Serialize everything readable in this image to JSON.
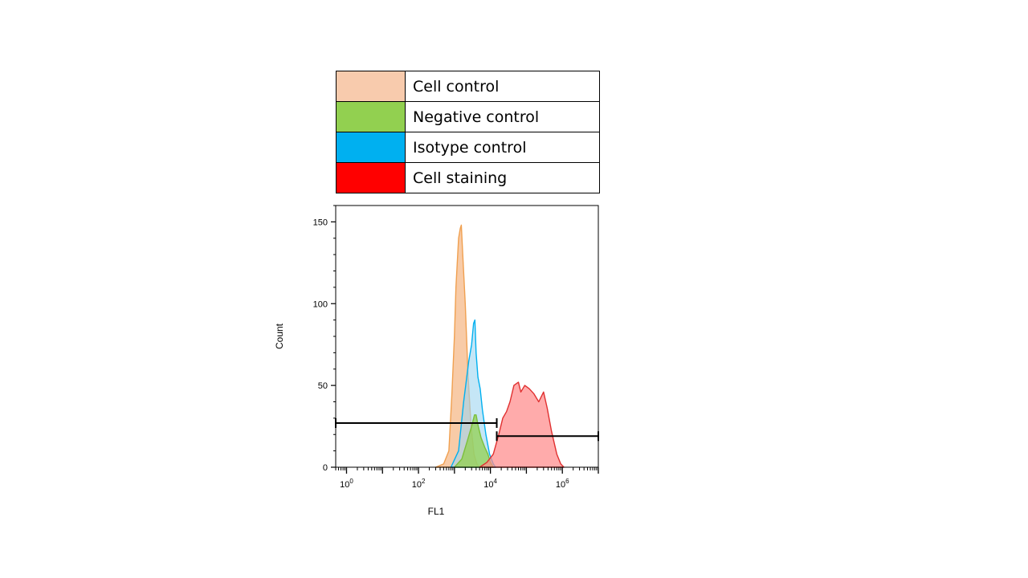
{
  "chart_data": {
    "type": "area",
    "title": "",
    "xlabel": "FL1",
    "ylabel": "Count",
    "x_scale": "log",
    "xlim": [
      0.5,
      10000000
    ],
    "ylim": [
      0,
      160
    ],
    "x_ticks": [
      {
        "value": 1,
        "base": "10",
        "exp": "0"
      },
      {
        "value": 100,
        "base": "10",
        "exp": "2"
      },
      {
        "value": 10000,
        "base": "10",
        "exp": "4"
      },
      {
        "value": 1000000,
        "base": "10",
        "exp": "6"
      }
    ],
    "y_ticks": [
      {
        "value": 0,
        "label": "0"
      },
      {
        "value": 50,
        "label": "50"
      },
      {
        "value": 100,
        "label": "100"
      },
      {
        "value": 150,
        "label": "150"
      }
    ],
    "legend": {
      "placement": "top",
      "entries": [
        {
          "label": "Cell control",
          "color": "#F8CBAD"
        },
        {
          "label": "Negative control",
          "color": "#92D050"
        },
        {
          "label": "Isotype control",
          "color": "#00B0F0"
        },
        {
          "label": "Cell staining",
          "color": "#FF0000"
        }
      ]
    },
    "series": [
      {
        "key": "cell_control",
        "fill": "#F5B98A",
        "stroke": "#F0A050",
        "opacity": 0.75,
        "points": [
          [
            300,
            0
          ],
          [
            500,
            2
          ],
          [
            700,
            10
          ],
          [
            850,
            45
          ],
          [
            1000,
            80
          ],
          [
            1100,
            110
          ],
          [
            1300,
            140
          ],
          [
            1450,
            146
          ],
          [
            1550,
            148
          ],
          [
            1700,
            130
          ],
          [
            2000,
            100
          ],
          [
            2400,
            55
          ],
          [
            2900,
            25
          ],
          [
            3500,
            8
          ],
          [
            4200,
            2
          ],
          [
            5000,
            0
          ]
        ]
      },
      {
        "key": "isotype_control",
        "fill": "#9FD6F0",
        "stroke": "#00B0F0",
        "opacity": 0.6,
        "points": [
          [
            800,
            0
          ],
          [
            1300,
            10
          ],
          [
            1800,
            40
          ],
          [
            2500,
            65
          ],
          [
            3000,
            75
          ],
          [
            3400,
            88
          ],
          [
            3700,
            90
          ],
          [
            4000,
            70
          ],
          [
            4500,
            55
          ],
          [
            5200,
            48
          ],
          [
            6000,
            35
          ],
          [
            7500,
            20
          ],
          [
            9500,
            8
          ],
          [
            12000,
            2
          ],
          [
            14000,
            0
          ]
        ]
      },
      {
        "key": "negative_control",
        "fill": "#92D050",
        "stroke": "#7CBF3A",
        "opacity": 0.75,
        "points": [
          [
            1000,
            0
          ],
          [
            1600,
            5
          ],
          [
            2200,
            15
          ],
          [
            3000,
            25
          ],
          [
            3600,
            32
          ],
          [
            4000,
            32
          ],
          [
            4600,
            25
          ],
          [
            5500,
            18
          ],
          [
            7000,
            12
          ],
          [
            8500,
            8
          ],
          [
            10000,
            3
          ],
          [
            12000,
            0
          ]
        ]
      },
      {
        "key": "cell_staining",
        "fill": "#FF8A8A",
        "stroke": "#E03030",
        "opacity": 0.72,
        "points": [
          [
            5000,
            0
          ],
          [
            8000,
            3
          ],
          [
            12000,
            8
          ],
          [
            17000,
            20
          ],
          [
            22000,
            30
          ],
          [
            28000,
            34
          ],
          [
            35000,
            40
          ],
          [
            45000,
            50
          ],
          [
            60000,
            52
          ],
          [
            70000,
            46
          ],
          [
            90000,
            50
          ],
          [
            120000,
            48
          ],
          [
            160000,
            45
          ],
          [
            220000,
            40
          ],
          [
            300000,
            46
          ],
          [
            380000,
            36
          ],
          [
            500000,
            22
          ],
          [
            700000,
            8
          ],
          [
            900000,
            2
          ],
          [
            1100000,
            0
          ]
        ]
      }
    ],
    "gates": [
      {
        "x_start": 0.5,
        "x_end": 15000,
        "y": 27
      },
      {
        "x_start": 15000,
        "x_end": 10000000,
        "y": 19
      }
    ]
  }
}
